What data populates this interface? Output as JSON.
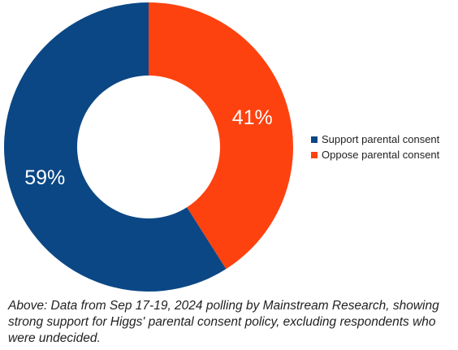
{
  "chart_data": {
    "type": "pie",
    "donut": true,
    "categories": [
      "Support parental consent",
      "Oppose parental consent"
    ],
    "values": [
      59,
      41
    ],
    "labels": [
      "59%",
      "41%"
    ],
    "colors": [
      "#0b4785",
      "#fe420f"
    ],
    "legend_position": "right"
  },
  "caption": "Above: Data from Sep 17-19, 2024 polling by Mainstream Research, showing strong support for Higgs' parental consent policy, excluding respondents who were undecided."
}
